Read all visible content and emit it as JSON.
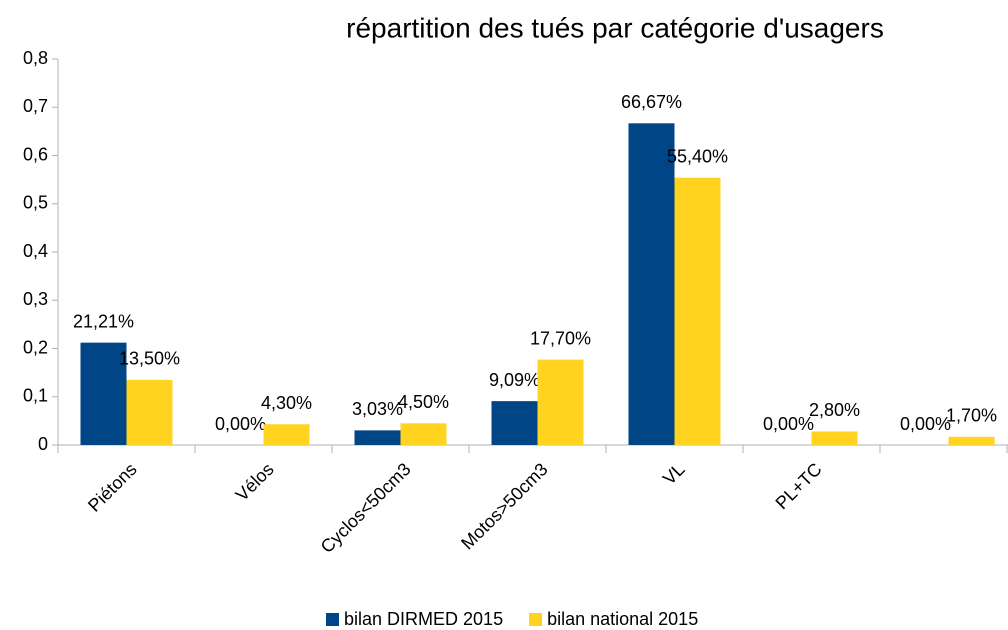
{
  "chart_data": {
    "type": "bar",
    "title": "répartition des tués par catégorie d'usagers",
    "categories": [
      "Piétons",
      "Vélos",
      "Cyclos<50cm3",
      "Motos>50cm3",
      "VL",
      "PL+TC",
      null
    ],
    "series": [
      {
        "name": "bilan DIRMED 2015",
        "color": "#004586",
        "values": [
          0.2121,
          0,
          0.0303,
          0.0909,
          0.6667,
          0,
          0
        ],
        "value_labels": [
          "21,21%",
          "0,00%",
          "3,03%",
          "9,09%",
          "66,67%",
          "0,00%",
          "0,00%"
        ]
      },
      {
        "name": "bilan national 2015",
        "color": "#ffd320",
        "values": [
          0.135,
          0.043,
          0.045,
          0.177,
          0.554,
          0.028,
          0.017
        ],
        "value_labels": [
          "13,50%",
          "4,30%",
          "4,50%",
          "17,70%",
          "55,40%",
          "2,80%",
          "1,70%"
        ]
      }
    ],
    "ylim": [
      0,
      0.8
    ],
    "yticks": [
      0,
      {
        "value": 0.1,
        "label": "0,1"
      },
      {
        "value": 0.2,
        "label": "0,2"
      },
      {
        "value": 0.3,
        "label": "0,3"
      },
      {
        "value": 0.4,
        "label": "0,4"
      },
      {
        "value": 0.5,
        "label": "0,5"
      },
      {
        "value": 0.6,
        "label": "0,6"
      },
      {
        "value": 0.7,
        "label": "0,7"
      },
      {
        "value": 0.8,
        "label": "0,8"
      }
    ],
    "grid": false,
    "legend": "bottom"
  }
}
